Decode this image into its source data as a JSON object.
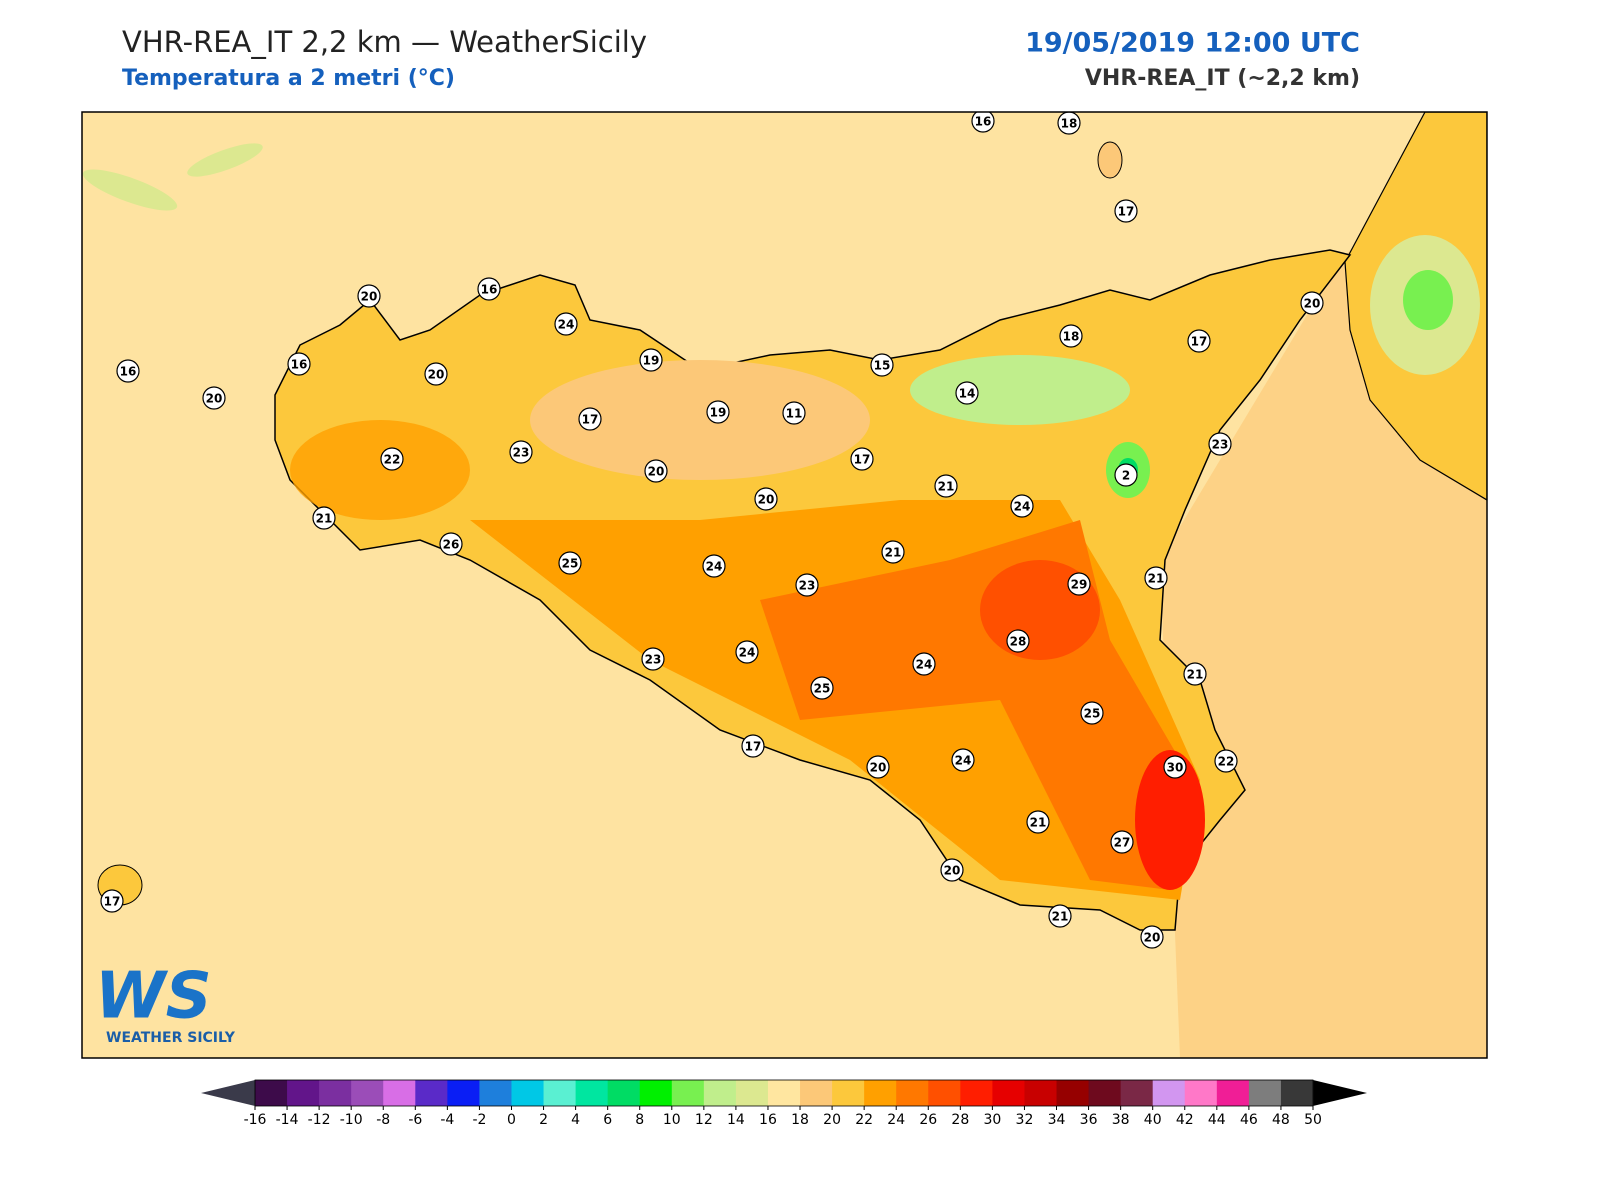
{
  "header": {
    "title": "VHR-REA_IT 2,2 km — WeatherSicily",
    "subtitle": "Temperatura a 2 metri (°C)",
    "date": "19/05/2019 12:00 UTC",
    "model": "VHR-REA_IT (~2,2 km)"
  },
  "stations": [
    16,
    18,
    17,
    20,
    16,
    24,
    19,
    16,
    16,
    20,
    20,
    15,
    18,
    17,
    20,
    14,
    11,
    19,
    17,
    23,
    22,
    17,
    20,
    23,
    2,
    21,
    20,
    24,
    21,
    26,
    25,
    24,
    21,
    23,
    29,
    21,
    28,
    24,
    23,
    24,
    25,
    21,
    25,
    17,
    20,
    24,
    30,
    22,
    21,
    27,
    20,
    17,
    21,
    20
  ],
  "colorbar": {
    "ticks": [
      -16,
      -14,
      -12,
      -10,
      -8,
      -6,
      -4,
      -2,
      0,
      2,
      4,
      6,
      8,
      10,
      12,
      14,
      16,
      18,
      20,
      22,
      24,
      26,
      28,
      30,
      32,
      34,
      36,
      38,
      40,
      42,
      44,
      46,
      48,
      50
    ],
    "colors": [
      "#3d0b4a",
      "#62158a",
      "#7b2fa0",
      "#9b4db8",
      "#d86ee6",
      "#5a2ac8",
      "#0a1ef5",
      "#1e7fdc",
      "#00c8e6",
      "#5af0d2",
      "#00e6a0",
      "#00dc64",
      "#00f000",
      "#78f050",
      "#c0ee8c",
      "#dce890",
      "#ffe6a0",
      "#fcc878",
      "#fcc83c",
      "#ffa000",
      "#ff7800",
      "#ff5000",
      "#ff1e00",
      "#e60000",
      "#c80000",
      "#960000",
      "#6e0a1e",
      "#7a2846",
      "#d296f0",
      "#ff78c8",
      "#f01e96",
      "#7d7d7d",
      "#383838"
    ],
    "under_color": "#3a3a4a",
    "over_color": "#000000"
  },
  "logo": {
    "mark": "WS",
    "text": "WEATHER SICILY"
  }
}
